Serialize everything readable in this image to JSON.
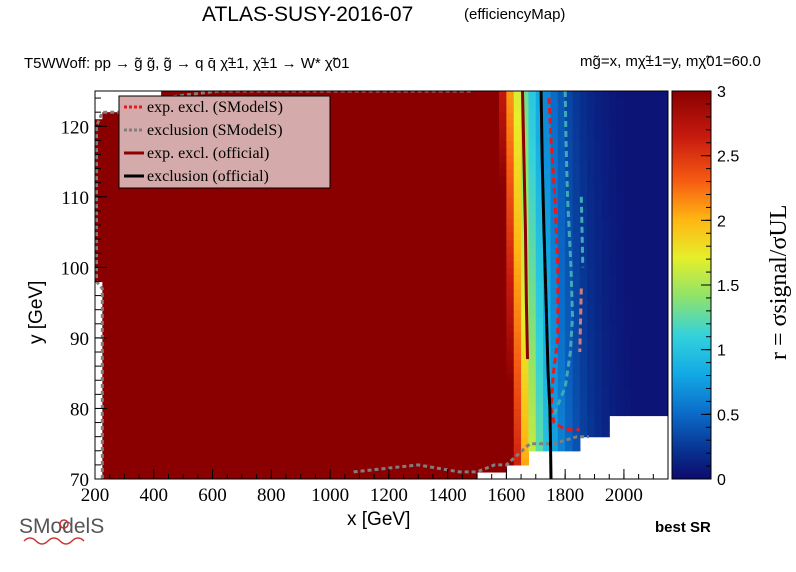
{
  "header": {
    "title": "ATLAS-SUSY-2016-07",
    "subtitle": "(efficiencyMap)",
    "process": "T5WWoff: pp → g̃ g̃, g̃ → q q̄ χ̃±1, χ̃±1 → W* χ̃01",
    "masses": "mg̃=x, mχ̃±1=y, mχ̃01=60.0"
  },
  "footer": {
    "best_sr": "best SR",
    "logo_text": "SModelS"
  },
  "chart_data": {
    "type": "heatmap",
    "xlabel": "x [GeV]",
    "ylabel": "y [GeV]",
    "zlabel": "r = σsignal/σUL",
    "xlim": [
      200,
      2150
    ],
    "ylim": [
      70,
      125
    ],
    "zlim": [
      0,
      3
    ],
    "x_ticks": [
      200,
      400,
      600,
      800,
      1000,
      1200,
      1400,
      1600,
      1800,
      2000
    ],
    "y_ticks": [
      70,
      80,
      90,
      100,
      110,
      120
    ],
    "z_ticks": [
      0,
      0.5,
      1,
      1.5,
      2,
      2.5,
      3
    ],
    "grid": false,
    "legend_position": "top-left",
    "legend": [
      {
        "label": "exp. excl. (SModelS)",
        "color": "#e8191c",
        "style": "dotted"
      },
      {
        "label": "exclusion (SModelS)",
        "color": "#7f7f7f",
        "style": "dotted"
      },
      {
        "label": "exp. excl. (official)",
        "color": "#8b0000",
        "style": "solid"
      },
      {
        "label": "exclusion (official)",
        "color": "#000000",
        "style": "solid"
      }
    ],
    "heatmap_model": {
      "saturated_region": "x < 1480 (r ≥ 3)",
      "r_equals_1_at_x_low_y": 1740,
      "r_equals_1_at_x_high_y": 1690,
      "r_min": 0.05
    },
    "curves": {
      "exclusion_official": [
        [
          1718,
          125
        ],
        [
          1722,
          115
        ],
        [
          1728,
          105
        ],
        [
          1735,
          95
        ],
        [
          1742,
          85
        ],
        [
          1748,
          80
        ],
        [
          1750,
          75
        ],
        [
          1752,
          70
        ]
      ],
      "exp_excl_official": [
        [
          1655,
          125
        ],
        [
          1660,
          115
        ],
        [
          1665,
          105
        ],
        [
          1668,
          95
        ],
        [
          1672,
          87
        ]
      ],
      "exp_excl_smodels": [
        [
          1745,
          124
        ],
        [
          1752,
          118
        ],
        [
          1765,
          110
        ],
        [
          1775,
          100
        ],
        [
          1775,
          90
        ],
        [
          1760,
          85
        ],
        [
          1752,
          80
        ],
        [
          1762,
          78
        ],
        [
          1800,
          77
        ],
        [
          1850,
          77
        ]
      ],
      "exclusion_smodels_right": [
        [
          1800,
          125
        ],
        [
          1803,
          118
        ],
        [
          1808,
          110
        ],
        [
          1820,
          100
        ],
        [
          1825,
          93
        ],
        [
          1818,
          88
        ],
        [
          1800,
          83
        ],
        [
          1780,
          81
        ],
        [
          1762,
          79
        ]
      ],
      "exclusion_smodels_right2": [
        [
          1855,
          110
        ],
        [
          1860,
          100
        ]
      ],
      "exclusion_smodels_right3": [
        [
          1855,
          97
        ],
        [
          1850,
          88
        ]
      ],
      "exclusion_smodels_boundary": [
        [
          225,
          70
        ],
        [
          225,
          97
        ],
        [
          205,
          98
        ],
        [
          205,
          120
        ],
        [
          225,
          122
        ],
        [
          425,
          122
        ],
        [
          425,
          124
        ],
        [
          620,
          125
        ],
        [
          1340,
          125
        ],
        [
          1480,
          125
        ]
      ],
      "exclusion_smodels_bottom": [
        [
          1080,
          71
        ],
        [
          1300,
          72
        ],
        [
          1440,
          71
        ],
        [
          1500,
          71
        ],
        [
          1560,
          72
        ],
        [
          1600,
          72
        ],
        [
          1680,
          75
        ],
        [
          1720,
          75
        ],
        [
          1760,
          75
        ],
        [
          1840,
          76
        ],
        [
          1880,
          76
        ]
      ]
    }
  }
}
